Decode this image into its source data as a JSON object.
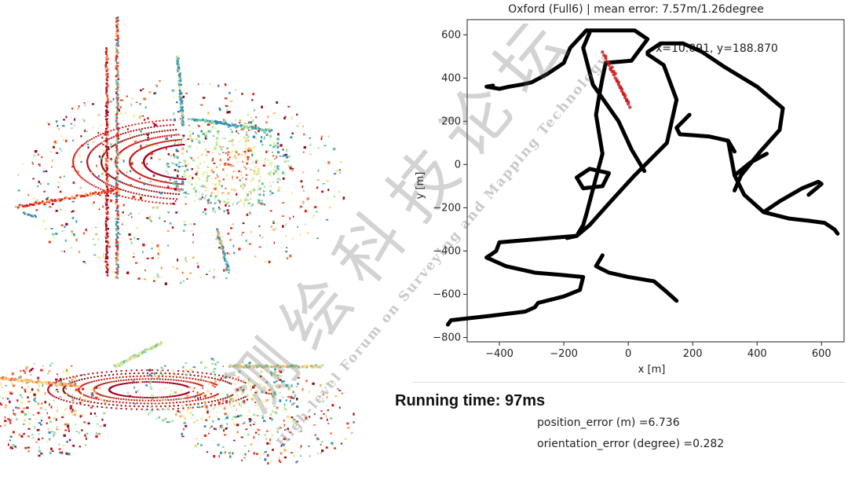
{
  "chart_data": {
    "type": "line",
    "title": "Oxford (Full6) | mean error: 7.57m/1.26degree",
    "xlabel": "x [m]",
    "ylabel": "y [m]",
    "xlim": [
      -500,
      670
    ],
    "ylim": [
      -820,
      670
    ],
    "xticks": [
      -400,
      -200,
      0,
      200,
      400,
      600
    ],
    "yticks": [
      600,
      400,
      200,
      0,
      -200,
      -400,
      -600,
      -800
    ],
    "xtick_labels": [
      "−400",
      "−200",
      "0",
      "200",
      "400",
      "600"
    ],
    "ytick_labels": [
      "600",
      "400",
      "200",
      "0",
      "−200",
      "−400",
      "−600",
      "−800"
    ],
    "grid": false,
    "cursor_readout": "x=10.091, y=188.870",
    "series": [
      {
        "color": "#000000",
        "segments": [
          {
            "x": [
              -130,
              20,
              60,
              10,
              -70,
              -80,
              -90,
              -100,
              -90,
              -80,
              -100,
              -130,
              -140,
              -160,
              -400,
              -410,
              -440,
              -380,
              -290,
              -210,
              -140,
              -150,
              -200,
              -280,
              -290,
              -320,
              -430,
              -550,
              -560
            ],
            "y": [
              620,
              620,
              580,
              480,
              470,
              400,
              320,
              230,
              140,
              50,
              -60,
              -230,
              -280,
              -330,
              -360,
              -400,
              -430,
              -470,
              -500,
              -510,
              -520,
              -580,
              -610,
              -640,
              -660,
              -680,
              -700,
              -720,
              -740
            ]
          },
          {
            "x": [
              -130,
              -180,
              -200,
              -250,
              -300,
              -330,
              -370,
              -400,
              -440,
              -420
            ],
            "y": [
              620,
              540,
              470,
              420,
              380,
              370,
              360,
              350,
              360,
              365
            ]
          },
          {
            "x": [
              -120,
              -140,
              -110,
              -30,
              10,
              50
            ],
            "y": [
              610,
              540,
              370,
              200,
              70,
              -30
            ]
          },
          {
            "x": [
              -80,
              -100,
              -60,
              0,
              80,
              120,
              150
            ],
            "y": [
              -420,
              -470,
              -500,
              -520,
              -540,
              -590,
              -630
            ]
          },
          {
            "x": [
              -120,
              -160,
              -140,
              -80,
              -60,
              -120
            ],
            "y": [
              -20,
              -60,
              -110,
              -100,
              -40,
              -20
            ]
          },
          {
            "x": [
              60,
              110,
              150,
              120,
              20,
              -60,
              -120,
              -160,
              -190
            ],
            "y": [
              510,
              460,
              300,
              100,
              -50,
              -180,
              -280,
              -330,
              -340
            ]
          }
        ]
      },
      {
        "color": "#000000",
        "segments": [
          {
            "x": [
              60,
              100,
              170,
              230,
              300,
              400,
              480,
              470,
              410,
              350,
              330
            ],
            "y": [
              520,
              560,
              560,
              520,
              450,
              360,
              260,
              160,
              60,
              -50,
              -120
            ]
          },
          {
            "x": [
              190,
              150,
              160,
              250,
              310,
              330
            ],
            "y": [
              230,
              170,
              140,
              130,
              110,
              60
            ]
          },
          {
            "x": [
              310,
              330,
              360,
              420,
              500,
              560,
              610,
              640,
              650
            ],
            "y": [
              110,
              -50,
              -140,
              -220,
              -250,
              -260,
              -270,
              -300,
              -320
            ]
          },
          {
            "x": [
              420,
              470,
              540,
              590,
              600,
              560
            ],
            "y": [
              -220,
              -170,
              -110,
              -80,
              -90,
              -140
            ]
          },
          {
            "x": [
              330,
              380,
              430
            ],
            "y": [
              -50,
              10,
              50
            ]
          }
        ]
      }
    ],
    "estimate_points": {
      "color": "#cc1111",
      "x": [
        -80,
        -75,
        -70,
        -65,
        -60,
        -55,
        -50,
        -45,
        -40,
        -35,
        -30,
        -25,
        -20,
        -15,
        -10,
        -5,
        0,
        5,
        -60,
        -50,
        -40,
        -30,
        -20,
        -10,
        0,
        -70,
        -45,
        -25,
        -5,
        -15,
        -35,
        -55
      ],
      "y": [
        520,
        505,
        490,
        475,
        460,
        445,
        430,
        415,
        400,
        385,
        370,
        355,
        340,
        325,
        310,
        295,
        280,
        265,
        470,
        450,
        420,
        380,
        350,
        320,
        290,
        500,
        430,
        360,
        300,
        330,
        390,
        440
      ]
    }
  },
  "running_time": "Running time: 97ms",
  "position_error": "position_error (m) =6.736",
  "orientation_error": "orientation_error (degree) =0.282",
  "watermark_lines": [
    "测绘科技论坛",
    "High-level Forum on Surveying and Mapping Technology"
  ]
}
